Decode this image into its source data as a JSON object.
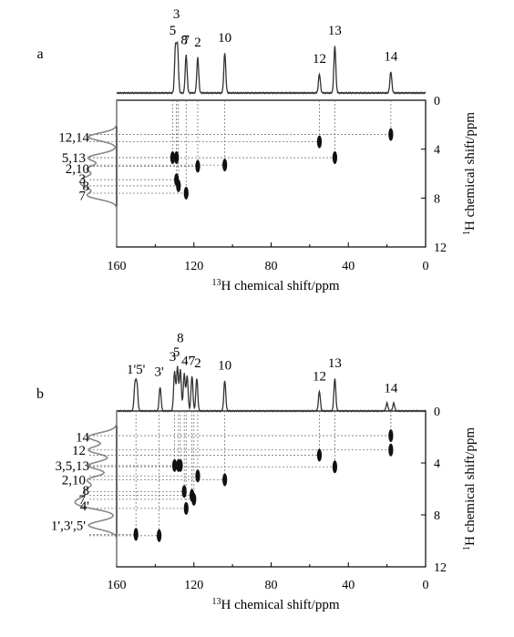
{
  "chart_data": [
    {
      "type": "heatmap",
      "panel_label": "a",
      "xlabel_sup": "13",
      "xlabel_rest": "H chemical shift/ppm",
      "ylabel_sup": "1",
      "ylabel_rest": "H chemical shift/ppm",
      "xlim": [
        160,
        0
      ],
      "ylim": [
        0,
        12
      ],
      "xticks": [
        "160",
        "120",
        "80",
        "40",
        "0"
      ],
      "yticks": [
        "0",
        "4",
        "8",
        "12"
      ],
      "grid": false,
      "top_spectrum_labels": [
        {
          "text": "3",
          "ppm": 129
        },
        {
          "text": "8",
          "ppm": 125
        },
        {
          "text": "5",
          "ppm": 131
        },
        {
          "text": "7",
          "ppm": 124
        },
        {
          "text": "2",
          "ppm": 118
        },
        {
          "text": "10",
          "ppm": 104
        },
        {
          "text": "12",
          "ppm": 55
        },
        {
          "text": "13",
          "ppm": 47
        },
        {
          "text": "14",
          "ppm": 18
        }
      ],
      "top_peaks": [
        {
          "ppm": 129.5,
          "height": 1.0
        },
        {
          "ppm": 128.5,
          "height": 0.95
        },
        {
          "ppm": 124,
          "height": 0.8
        },
        {
          "ppm": 118,
          "height": 0.75
        },
        {
          "ppm": 104,
          "height": 0.85
        },
        {
          "ppm": 55,
          "height": 0.4
        },
        {
          "ppm": 47,
          "height": 1.0
        },
        {
          "ppm": 18,
          "height": 0.45
        }
      ],
      "left_spectrum_labels": [
        {
          "text": "12,14",
          "h": 3.0
        },
        {
          "text": "5,13",
          "h": 4.7
        },
        {
          "text": "2,10",
          "h": 5.6
        },
        {
          "text": "3",
          "h": 6.4
        },
        {
          "text": "8",
          "h": 7.0
        },
        {
          "text": "7",
          "h": 7.8
        }
      ],
      "cross_peaks": [
        {
          "c": 55,
          "h": 3.4
        },
        {
          "c": 18,
          "h": 2.8
        },
        {
          "c": 131,
          "h": 4.7
        },
        {
          "c": 129,
          "h": 4.7
        },
        {
          "c": 47,
          "h": 4.7
        },
        {
          "c": 118,
          "h": 5.4
        },
        {
          "c": 104,
          "h": 5.3
        },
        {
          "c": 129,
          "h": 6.5
        },
        {
          "c": 128,
          "h": 7.0
        },
        {
          "c": 124,
          "h": 7.6
        }
      ]
    },
    {
      "type": "heatmap",
      "panel_label": "b",
      "xlabel_sup": "13",
      "xlabel_rest": "H chemical shift/ppm",
      "ylabel_sup": "1",
      "ylabel_rest": "H chemical shift/ppm",
      "xlim": [
        160,
        0
      ],
      "ylim": [
        0,
        12
      ],
      "xticks": [
        "160",
        "120",
        "80",
        "40",
        "0"
      ],
      "yticks": [
        "0",
        "4",
        "8",
        "12"
      ],
      "grid": false,
      "top_spectrum_labels": [
        {
          "text": "8",
          "ppm": 127
        },
        {
          "text": "5",
          "ppm": 129
        },
        {
          "text": "4'",
          "ppm": 124
        },
        {
          "text": "3",
          "ppm": 131
        },
        {
          "text": "7",
          "ppm": 121
        },
        {
          "text": "2",
          "ppm": 118
        },
        {
          "text": "1'5'",
          "ppm": 150
        },
        {
          "text": "3'",
          "ppm": 138
        },
        {
          "text": "10",
          "ppm": 104
        },
        {
          "text": "12",
          "ppm": 55
        },
        {
          "text": "13",
          "ppm": 47
        },
        {
          "text": "14",
          "ppm": 18
        }
      ],
      "top_peaks": [
        {
          "ppm": 150.5,
          "height": 0.6
        },
        {
          "ppm": 149.5,
          "height": 0.6
        },
        {
          "ppm": 137.5,
          "height": 0.55
        },
        {
          "ppm": 130,
          "height": 0.9
        },
        {
          "ppm": 128.5,
          "height": 1.0
        },
        {
          "ppm": 127,
          "height": 0.95
        },
        {
          "ppm": 125,
          "height": 0.85
        },
        {
          "ppm": 123.5,
          "height": 0.8
        },
        {
          "ppm": 121,
          "height": 0.8
        },
        {
          "ppm": 118.5,
          "height": 0.75
        },
        {
          "ppm": 104,
          "height": 0.7
        },
        {
          "ppm": 55,
          "height": 0.45
        },
        {
          "ppm": 47,
          "height": 0.75
        },
        {
          "ppm": 20,
          "height": 0.18
        },
        {
          "ppm": 16.5,
          "height": 0.18
        }
      ],
      "left_spectrum_labels": [
        {
          "text": "14",
          "h": 2.0
        },
        {
          "text": "12",
          "h": 3.0
        },
        {
          "text": "3,5,13",
          "h": 4.2
        },
        {
          "text": "2,10",
          "h": 5.3
        },
        {
          "text": "8",
          "h": 6.1
        },
        {
          "text": "7",
          "h": 6.8
        },
        {
          "text": "4'",
          "h": 7.3
        },
        {
          "text": "1',3',5'",
          "h": 8.8
        }
      ],
      "cross_peaks": [
        {
          "c": 18,
          "h": 1.9
        },
        {
          "c": 55,
          "h": 3.4
        },
        {
          "c": 18,
          "h": 3.0
        },
        {
          "c": 130,
          "h": 4.2
        },
        {
          "c": 128,
          "h": 4.2
        },
        {
          "c": 127,
          "h": 4.2
        },
        {
          "c": 47,
          "h": 4.3
        },
        {
          "c": 118,
          "h": 5.0
        },
        {
          "c": 104,
          "h": 5.3
        },
        {
          "c": 125,
          "h": 6.2
        },
        {
          "c": 121,
          "h": 6.5
        },
        {
          "c": 120,
          "h": 6.8
        },
        {
          "c": 124,
          "h": 7.5
        },
        {
          "c": 150,
          "h": 9.5
        },
        {
          "c": 138,
          "h": 9.6
        }
      ]
    }
  ]
}
